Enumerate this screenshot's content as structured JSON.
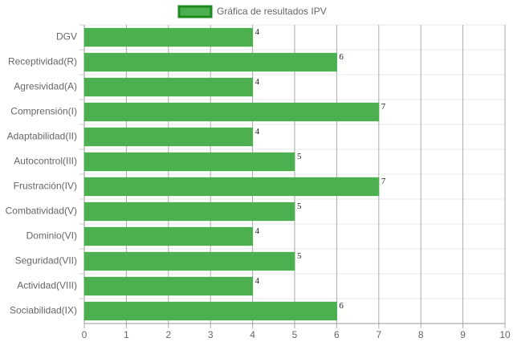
{
  "chart_data": {
    "type": "bar",
    "orientation": "horizontal",
    "categories": [
      "DGV",
      "Receptividad(R)",
      "Agresividad(A)",
      "Comprensión(I)",
      "Adaptabilidad(II)",
      "Autocontrol(III)",
      "Frustración(IV)",
      "Combatividad(V)",
      "Dominio(VI)",
      "Seguridad(VII)",
      "Actividad(VIII)",
      "Sociabilidad(IX)"
    ],
    "series": [
      {
        "name": "Gráfica de resultados IPV",
        "color": "#4caf50",
        "border_color": "#1e8a1e",
        "values": [
          4,
          6,
          4,
          7,
          4,
          5,
          7,
          5,
          4,
          5,
          4,
          6
        ]
      }
    ],
    "xlim": [
      0,
      10
    ],
    "xticks": [
      0,
      1,
      2,
      3,
      4,
      5,
      6,
      7,
      8,
      9,
      10
    ],
    "grid": true,
    "legend": "top"
  }
}
